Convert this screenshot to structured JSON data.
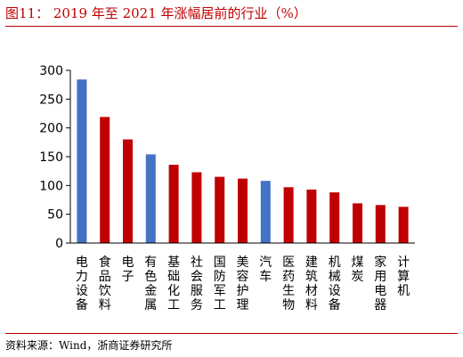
{
  "title": "图11： 2019 年至 2021 年涨幅居前的行业（%）",
  "source": "资料来源：Wind，浙商证券研究所",
  "colors": {
    "accent_red": "#c00000",
    "bar_red": "#c00000",
    "bar_blue": "#4472c4"
  },
  "chart_data": {
    "type": "bar",
    "categories": [
      "电力设备",
      "食品饮料",
      "电子",
      "有色金属",
      "基础化工",
      "社会服务",
      "国防军工",
      "美容护理",
      "汽车",
      "医药生物",
      "建筑材料",
      "机械设备",
      "煤炭",
      "家用电器",
      "计算机"
    ],
    "values": [
      284,
      219,
      180,
      154,
      136,
      123,
      115,
      112,
      108,
      97,
      93,
      88,
      69,
      66,
      63
    ],
    "bar_colors": [
      "blue",
      "red",
      "red",
      "blue",
      "red",
      "red",
      "red",
      "red",
      "blue",
      "red",
      "red",
      "red",
      "red",
      "red",
      "red"
    ],
    "ylim": [
      0,
      300
    ],
    "yticks": [
      0,
      50,
      100,
      150,
      200,
      250,
      300
    ],
    "xlabel": "",
    "ylabel": "",
    "grid": false,
    "legend": "none"
  }
}
